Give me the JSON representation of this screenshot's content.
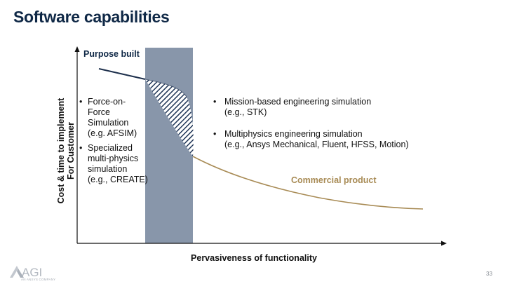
{
  "slide": {
    "title": "Software capabilities",
    "page_number": "33"
  },
  "axes": {
    "y_label_line1": "Cost & time to implement",
    "y_label_line2": "For Customer",
    "x_label": "Pervasiveness of functionality"
  },
  "labels": {
    "purpose_built": "Purpose built",
    "commercial_product": "Commercial product"
  },
  "left_bullets": [
    [
      "Force-on-",
      "Force",
      "Simulation",
      "(e.g. AFSIM)"
    ],
    [
      "Specialized",
      "multi-physics",
      "simulation",
      "(e.g., CREATE)"
    ]
  ],
  "right_bullets": [
    [
      "Mission-based engineering simulation",
      "(e.g., STK)"
    ],
    [
      "Multiphysics engineering simulation",
      "(e.g., Ansys Mechanical, Fluent, HFSS, Motion)"
    ]
  ],
  "logo": {
    "text": "AGI",
    "subtext": "AN ANSYS COMPANY"
  },
  "colors": {
    "title": "#0f2846",
    "band": "#8896aa",
    "purpose_line": "#1d2f4c",
    "commercial_line": "#a88b55",
    "hatch": "#1f3556"
  },
  "icons": {
    "logo": "agi-triangle-logo"
  }
}
